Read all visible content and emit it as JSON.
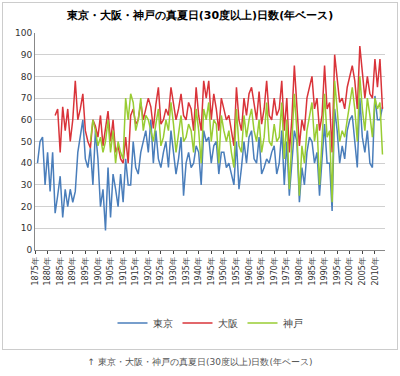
{
  "chart_data": {
    "type": "line",
    "title": "東京・大阪・神戸の真夏日(30度以上)日数(年ベース)",
    "x": [
      1876,
      1877,
      1878,
      1879,
      1880,
      1881,
      1882,
      1883,
      1884,
      1885,
      1886,
      1887,
      1888,
      1889,
      1890,
      1891,
      1892,
      1893,
      1894,
      1895,
      1896,
      1897,
      1898,
      1899,
      1900,
      1901,
      1902,
      1903,
      1904,
      1905,
      1906,
      1907,
      1908,
      1909,
      1910,
      1911,
      1912,
      1913,
      1914,
      1915,
      1916,
      1917,
      1918,
      1919,
      1920,
      1921,
      1922,
      1923,
      1924,
      1925,
      1926,
      1927,
      1928,
      1929,
      1930,
      1931,
      1932,
      1933,
      1934,
      1935,
      1936,
      1937,
      1938,
      1939,
      1940,
      1941,
      1942,
      1943,
      1944,
      1945,
      1946,
      1947,
      1948,
      1949,
      1950,
      1951,
      1952,
      1953,
      1954,
      1955,
      1956,
      1957,
      1958,
      1959,
      1960,
      1961,
      1962,
      1963,
      1964,
      1965,
      1966,
      1967,
      1968,
      1969,
      1970,
      1971,
      1972,
      1973,
      1974,
      1975,
      1976,
      1977,
      1978,
      1979,
      1980,
      1981,
      1982,
      1983,
      1984,
      1985,
      1986,
      1987,
      1988,
      1989,
      1990,
      1991,
      1992,
      1993,
      1994,
      1995,
      1996,
      1997,
      1998,
      1999,
      2000,
      2001,
      2002,
      2003,
      2004,
      2005,
      2006,
      2007,
      2008,
      2009,
      2010,
      2011,
      2012,
      2013
    ],
    "series": [
      {
        "name": "東京",
        "color": "#4a7ebb",
        "values": [
          40,
          50,
          52,
          30,
          45,
          27,
          45,
          17,
          25,
          34,
          15,
          28,
          20,
          28,
          22,
          27,
          45,
          52,
          60,
          42,
          38,
          47,
          30,
          55,
          42,
          20,
          28,
          9,
          38,
          15,
          35,
          28,
          20,
          35,
          22,
          42,
          30,
          30,
          50,
          38,
          35,
          45,
          50,
          55,
          45,
          60,
          40,
          55,
          42,
          38,
          45,
          50,
          38,
          55,
          45,
          35,
          42,
          52,
          25,
          40,
          45,
          38,
          40,
          48,
          45,
          30,
          55,
          50,
          52,
          40,
          48,
          50,
          35,
          45,
          45,
          38,
          40,
          35,
          30,
          50,
          28,
          38,
          50,
          40,
          52,
          55,
          42,
          40,
          52,
          35,
          38,
          42,
          40,
          45,
          48,
          35,
          40,
          55,
          30,
          50,
          25,
          40,
          55,
          50,
          22,
          38,
          30,
          45,
          52,
          50,
          40,
          45,
          25,
          42,
          58,
          40,
          40,
          18,
          65,
          55,
          40,
          48,
          42,
          55,
          60,
          62,
          50,
          38,
          70,
          52,
          45,
          55,
          40,
          38,
          71,
          60,
          60,
          66
        ]
      },
      {
        "name": "大阪",
        "color": "#d9343a",
        "values": [
          null,
          null,
          null,
          null,
          null,
          null,
          null,
          62,
          65,
          45,
          66,
          55,
          65,
          50,
          60,
          78,
          60,
          65,
          72,
          55,
          50,
          47,
          60,
          57,
          52,
          62,
          48,
          56,
          64,
          50,
          60,
          45,
          48,
          42,
          40,
          52,
          40,
          62,
          65,
          58,
          60,
          68,
          60,
          65,
          70,
          66,
          56,
          67,
          75,
          58,
          60,
          65,
          62,
          75,
          68,
          60,
          65,
          72,
          62,
          60,
          68,
          65,
          55,
          75,
          62,
          55,
          78,
          70,
          78,
          60,
          72,
          65,
          55,
          70,
          65,
          60,
          62,
          55,
          48,
          75,
          60,
          55,
          70,
          62,
          72,
          75,
          68,
          60,
          73,
          58,
          65,
          78,
          62,
          60,
          70,
          62,
          65,
          78,
          55,
          70,
          45,
          60,
          85,
          65,
          48,
          60,
          55,
          70,
          75,
          80,
          65,
          70,
          55,
          62,
          85,
          65,
          68,
          45,
          90,
          78,
          68,
          70,
          65,
          75,
          80,
          85,
          78,
          65,
          94,
          82,
          70,
          80,
          72,
          70,
          88,
          75,
          88,
          65
        ]
      },
      {
        "name": "神戸",
        "color": "#99cc33",
        "values": [
          null,
          null,
          null,
          null,
          null,
          null,
          null,
          null,
          null,
          null,
          null,
          null,
          null,
          null,
          null,
          null,
          null,
          null,
          null,
          null,
          null,
          50,
          60,
          55,
          48,
          52,
          45,
          50,
          60,
          45,
          55,
          40,
          50,
          45,
          42,
          70,
          60,
          72,
          68,
          55,
          60,
          70,
          55,
          62,
          60,
          55,
          50,
          58,
          65,
          48,
          52,
          60,
          55,
          68,
          58,
          45,
          55,
          62,
          50,
          52,
          58,
          55,
          45,
          65,
          55,
          40,
          65,
          60,
          68,
          50,
          60,
          58,
          40,
          62,
          55,
          50,
          55,
          45,
          38,
          65,
          48,
          45,
          62,
          52,
          60,
          65,
          55,
          50,
          60,
          45,
          52,
          68,
          50,
          48,
          58,
          50,
          52,
          68,
          42,
          60,
          28,
          50,
          72,
          55,
          25,
          48,
          40,
          55,
          62,
          68,
          50,
          58,
          30,
          50,
          72,
          52,
          55,
          22,
          78,
          65,
          50,
          55,
          52,
          60,
          68,
          75,
          65,
          50,
          80,
          65,
          55,
          70,
          62,
          52,
          70,
          65,
          68,
          44
        ]
      }
    ],
    "xlim": [
      1875,
      2014
    ],
    "xticks": [
      {
        "value": 1875,
        "label": "1875年"
      },
      {
        "value": 1880,
        "label": "1880年"
      },
      {
        "value": 1885,
        "label": "1885年"
      },
      {
        "value": 1890,
        "label": "1890年"
      },
      {
        "value": 1895,
        "label": "1895年"
      },
      {
        "value": 1900,
        "label": "1900年"
      },
      {
        "value": 1905,
        "label": "1905年"
      },
      {
        "value": 1910,
        "label": "1910年"
      },
      {
        "value": 1915,
        "label": "1915年"
      },
      {
        "value": 1920,
        "label": "1920年"
      },
      {
        "value": 1925,
        "label": "1925年"
      },
      {
        "value": 1930,
        "label": "1930年"
      },
      {
        "value": 1935,
        "label": "1935年"
      },
      {
        "value": 1940,
        "label": "1940年"
      },
      {
        "value": 1945,
        "label": "1945年"
      },
      {
        "value": 1950,
        "label": "1950年"
      },
      {
        "value": 1955,
        "label": "1955年"
      },
      {
        "value": 1960,
        "label": "1960年"
      },
      {
        "value": 1965,
        "label": "1965年"
      },
      {
        "value": 1970,
        "label": "1970年"
      },
      {
        "value": 1975,
        "label": "1975年"
      },
      {
        "value": 1980,
        "label": "1980年"
      },
      {
        "value": 1985,
        "label": "1985年"
      },
      {
        "value": 1990,
        "label": "1990年"
      },
      {
        "value": 1995,
        "label": "1995年"
      },
      {
        "value": 2000,
        "label": "2000年"
      },
      {
        "value": 2005,
        "label": "2005年"
      },
      {
        "value": 2010,
        "label": "2010年"
      }
    ],
    "ylim": [
      0,
      100
    ],
    "yticks": [
      0,
      10,
      20,
      30,
      40,
      50,
      60,
      70,
      80,
      90,
      100
    ],
    "grid": true,
    "legend": "bottom"
  },
  "caption": "↑ 東京・大阪・神戸の真夏日(30度以上)日数(年ベース)"
}
